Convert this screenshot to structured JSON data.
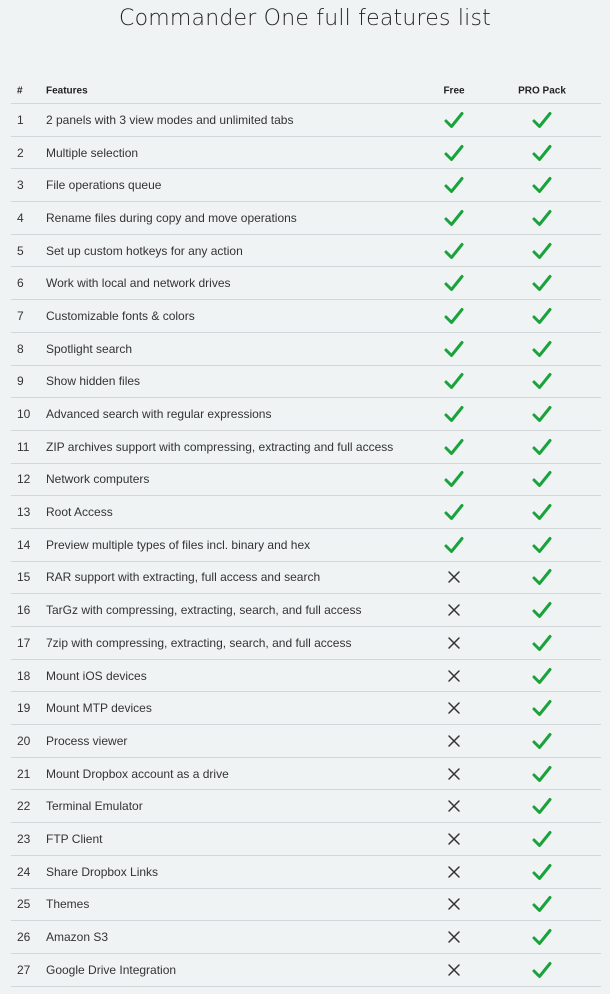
{
  "title": "Commander One full features list",
  "colors": {
    "check": "#1aa33c",
    "cross": "#333333",
    "background": "#f0f3f4",
    "divider": "#d3d7d9"
  },
  "icons": {
    "included": "check-icon",
    "excluded": "cross-icon"
  },
  "table": {
    "headers": {
      "num": "#",
      "feature": "Features",
      "free": "Free",
      "pro": "PRO Pack"
    },
    "rows": [
      {
        "num": "1",
        "feature": "2 panels with 3 view modes and unlimited tabs",
        "free": true,
        "pro": true
      },
      {
        "num": "2",
        "feature": "Multiple selection",
        "free": true,
        "pro": true
      },
      {
        "num": "3",
        "feature": "File operations queue",
        "free": true,
        "pro": true
      },
      {
        "num": "4",
        "feature": "Rename files during copy and move operations",
        "free": true,
        "pro": true
      },
      {
        "num": "5",
        "feature": "Set up custom hotkeys for any action",
        "free": true,
        "pro": true
      },
      {
        "num": "6",
        "feature": "Work with local and network drives",
        "free": true,
        "pro": true
      },
      {
        "num": "7",
        "feature": "Customizable fonts & colors",
        "free": true,
        "pro": true
      },
      {
        "num": "8",
        "feature": "Spotlight search",
        "free": true,
        "pro": true
      },
      {
        "num": "9",
        "feature": "Show hidden files",
        "free": true,
        "pro": true
      },
      {
        "num": "10",
        "feature": "Advanced search with regular expressions",
        "free": true,
        "pro": true
      },
      {
        "num": "11",
        "feature": "ZIP archives support with compressing, extracting and full access",
        "free": true,
        "pro": true
      },
      {
        "num": "12",
        "feature": "Network computers",
        "free": true,
        "pro": true
      },
      {
        "num": "13",
        "feature": "Root Access",
        "free": true,
        "pro": true
      },
      {
        "num": "14",
        "feature": "Preview multiple types of files incl. binary and hex",
        "free": true,
        "pro": true
      },
      {
        "num": "15",
        "feature": "RAR support with extracting, full access and search",
        "free": false,
        "pro": true
      },
      {
        "num": "16",
        "feature": "TarGz with compressing, extracting, search, and full access",
        "free": false,
        "pro": true
      },
      {
        "num": "17",
        "feature": "7zip with compressing, extracting, search, and full access",
        "free": false,
        "pro": true
      },
      {
        "num": "18",
        "feature": "Mount iOS devices",
        "free": false,
        "pro": true
      },
      {
        "num": "19",
        "feature": "Mount MTP devices",
        "free": false,
        "pro": true
      },
      {
        "num": "20",
        "feature": "Process viewer",
        "free": false,
        "pro": true
      },
      {
        "num": "21",
        "feature": "Mount Dropbox account as a drive",
        "free": false,
        "pro": true
      },
      {
        "num": "22",
        "feature": "Terminal Emulator",
        "free": false,
        "pro": true
      },
      {
        "num": "23",
        "feature": "FTP Client",
        "free": false,
        "pro": true
      },
      {
        "num": "24",
        "feature": "Share Dropbox Links",
        "free": false,
        "pro": true
      },
      {
        "num": "25",
        "feature": "Themes",
        "free": false,
        "pro": true
      },
      {
        "num": "26",
        "feature": "Amazon S3",
        "free": false,
        "pro": true
      },
      {
        "num": "27",
        "feature": "Google Drive Integration",
        "free": false,
        "pro": true
      }
    ]
  }
}
